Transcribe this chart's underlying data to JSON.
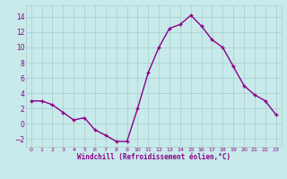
{
  "x": [
    0,
    1,
    2,
    3,
    4,
    5,
    6,
    7,
    8,
    9,
    10,
    11,
    12,
    13,
    14,
    15,
    16,
    17,
    18,
    19,
    20,
    21,
    22,
    23
  ],
  "y": [
    3,
    3,
    2.5,
    1.5,
    0.5,
    0.8,
    -0.8,
    -1.5,
    -2.3,
    -2.3,
    2,
    6.7,
    10,
    12.5,
    13,
    14.2,
    12.8,
    11,
    10,
    7.5,
    5,
    3.8,
    3,
    1.2
  ],
  "line_color": "#8B008B",
  "marker": "+",
  "marker_color": "#8B008B",
  "bg_color": "#c8eaea",
  "grid_color": "#a8cccc",
  "xlabel": "Windchill (Refroidissement éolien,°C)",
  "axis_label_color": "#8B008B",
  "tick_label_color": "#8B008B",
  "xlim": [
    -0.5,
    23.5
  ],
  "ylim": [
    -3,
    15.5
  ],
  "yticks": [
    -2,
    0,
    2,
    4,
    6,
    8,
    10,
    12,
    14
  ],
  "xticks": [
    0,
    1,
    2,
    3,
    4,
    5,
    6,
    7,
    8,
    9,
    10,
    11,
    12,
    13,
    14,
    15,
    16,
    17,
    18,
    19,
    20,
    21,
    22,
    23
  ],
  "linewidth": 1.0,
  "markersize": 3.5,
  "markeredgewidth": 1.0
}
